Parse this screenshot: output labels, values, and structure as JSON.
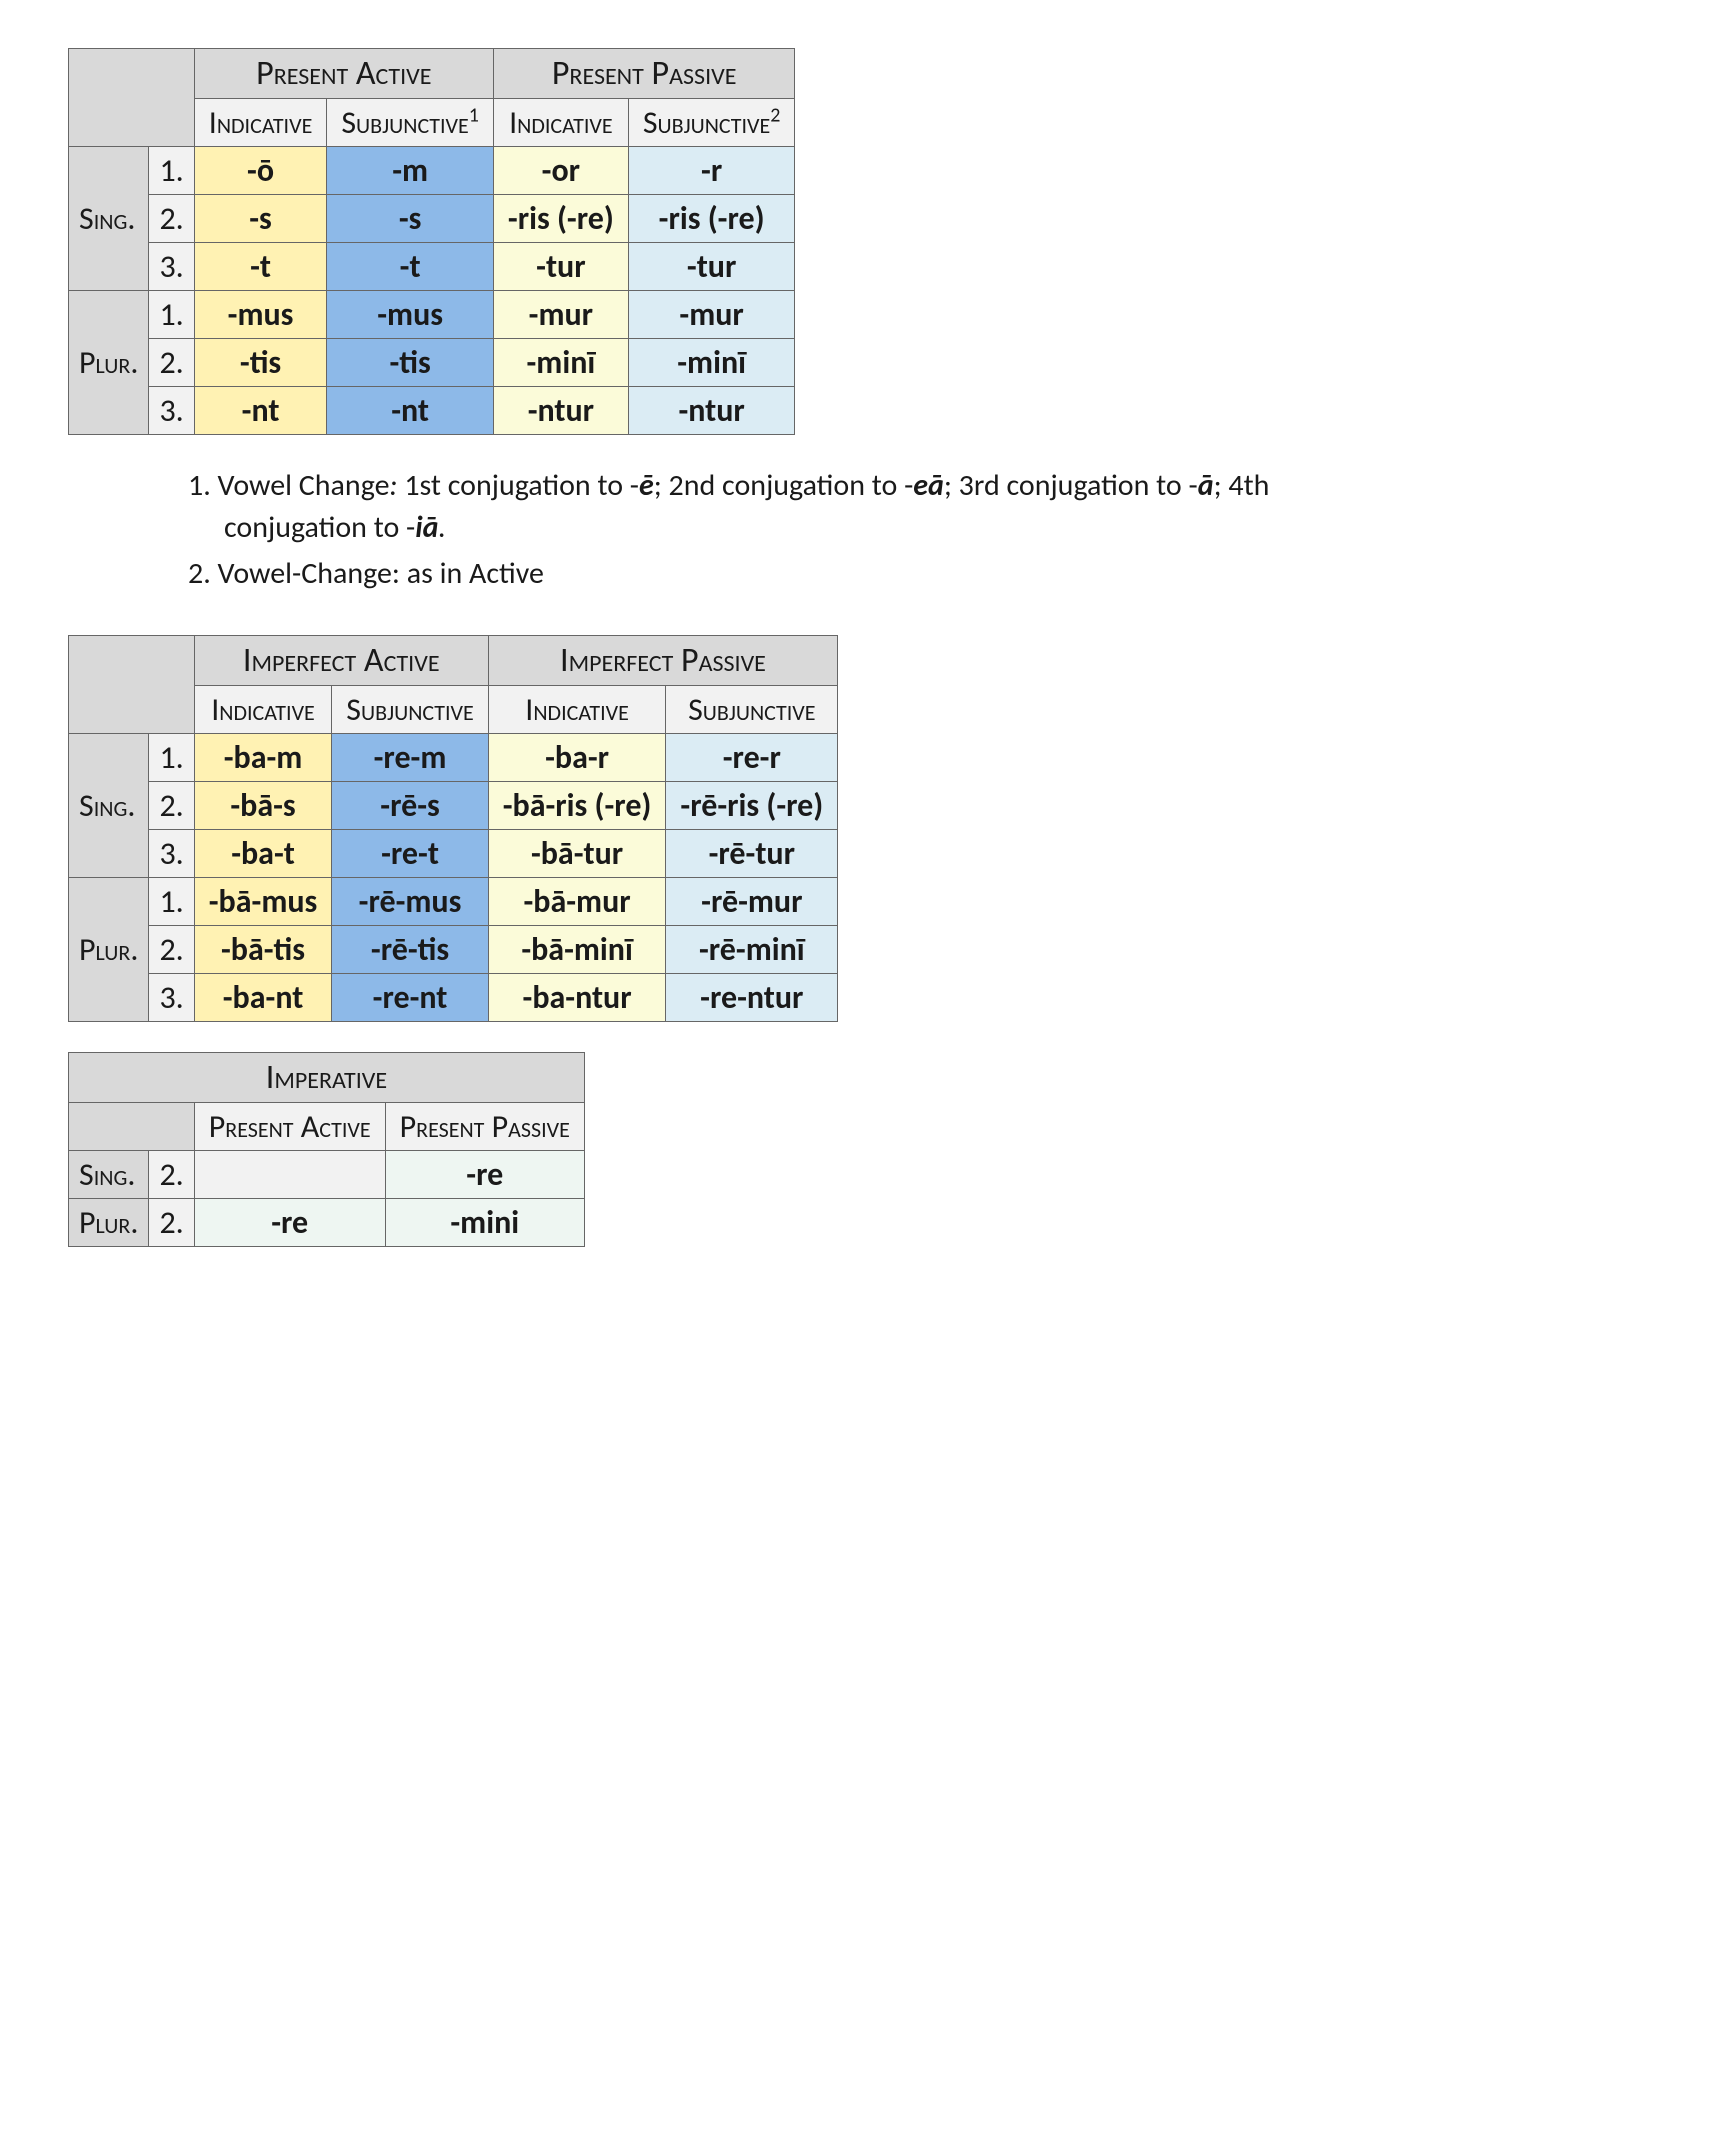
{
  "table1": {
    "top": {
      "active": "Present Active",
      "passive": "Present Passive"
    },
    "sub": {
      "ind": "Indicative",
      "subj1": "Subjunctive",
      "sup1": "1",
      "subj2": "Subjunctive",
      "sup2": "2"
    },
    "rows": {
      "sing": "Sing.",
      "plur": "Plur.",
      "n1": "1.",
      "n2": "2.",
      "n3": "3.",
      "s1": [
        "-ō",
        "-m",
        "-or",
        "-r"
      ],
      "s2": [
        "-s",
        "-s",
        "-ris (-re)",
        "-ris (-re)"
      ],
      "s3": [
        "-t",
        "-t",
        "-tur",
        "-tur"
      ],
      "p1": [
        "-mus",
        "-mus",
        "-mur",
        "-mur"
      ],
      "p2": [
        "-tis",
        "-tis",
        "-minī",
        "-minī"
      ],
      "p3": [
        "-nt",
        "-nt",
        "-ntur",
        "-ntur"
      ]
    }
  },
  "notes": {
    "n1a": "1. Vowel Change",
    "n1b": " 1st conjugation to -",
    "n1c": "ē",
    "n1d": "; 2nd conjugation to -",
    "n1e": "eā",
    "n1f": "; 3rd conjugation to -",
    "n1g": "ā",
    "n1h": "; 4th conjugation to -",
    "n1i": "iā",
    "n1j": ".",
    "n2": "2. Vowel-Change: as in Active"
  },
  "table2": {
    "top": {
      "active": "Imperfect Active",
      "passive": "Imperfect Passive"
    },
    "sub": {
      "ind": "Indicative",
      "subj": "Subjunctive"
    },
    "rows": {
      "sing": "Sing.",
      "plur": "Plur.",
      "n1": "1.",
      "n2": "2.",
      "n3": "3.",
      "s1": [
        "-ba-m",
        "-re-m",
        "-ba-r",
        "-re-r"
      ],
      "s2": [
        "-bā-s",
        "-rē-s",
        "-bā-ris (-re)",
        "-rē-ris (-re)"
      ],
      "s3": [
        "-ba-t",
        "-re-t",
        "-bā-tur",
        "-rē-tur"
      ],
      "p1": [
        "-bā-mus",
        "-rē-mus",
        "-bā-mur",
        "-rē-mur"
      ],
      "p2": [
        "-bā-tis",
        "-rē-tis",
        "-bā-minī",
        "-rē-minī"
      ],
      "p3": [
        "-ba-nt",
        "-re-nt",
        "-ba-ntur",
        "-re-ntur"
      ]
    }
  },
  "table3": {
    "title": "Imperative",
    "sub": {
      "active": "Present Active",
      "passive": "Present Passive"
    },
    "rows": {
      "sing": "Sing.",
      "plur": "Plur.",
      "n2": "2.",
      "s2": [
        "",
        "-re"
      ],
      "p2": [
        "-re",
        "-mini"
      ]
    }
  }
}
